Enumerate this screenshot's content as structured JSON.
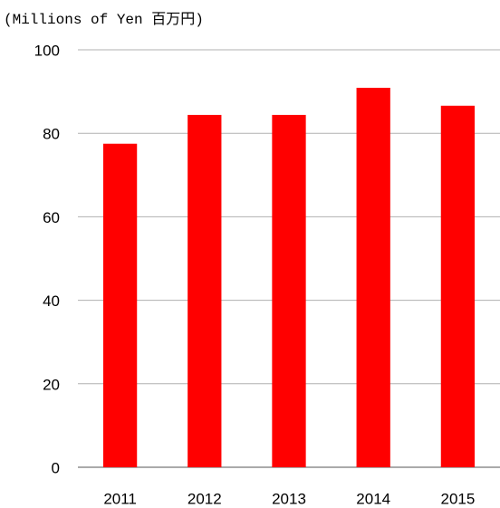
{
  "chart_data": {
    "type": "bar",
    "y_label": "(Millions of Yen 百万円)",
    "categories": [
      "2011",
      "2012",
      "2013",
      "2014",
      "2015"
    ],
    "values": [
      77.5,
      84.4,
      84.4,
      90.9,
      86.6
    ],
    "color": "#ff0000",
    "ylim": [
      0,
      100
    ],
    "yticks": [
      0,
      20,
      40,
      60,
      80,
      100
    ],
    "grid": true
  }
}
